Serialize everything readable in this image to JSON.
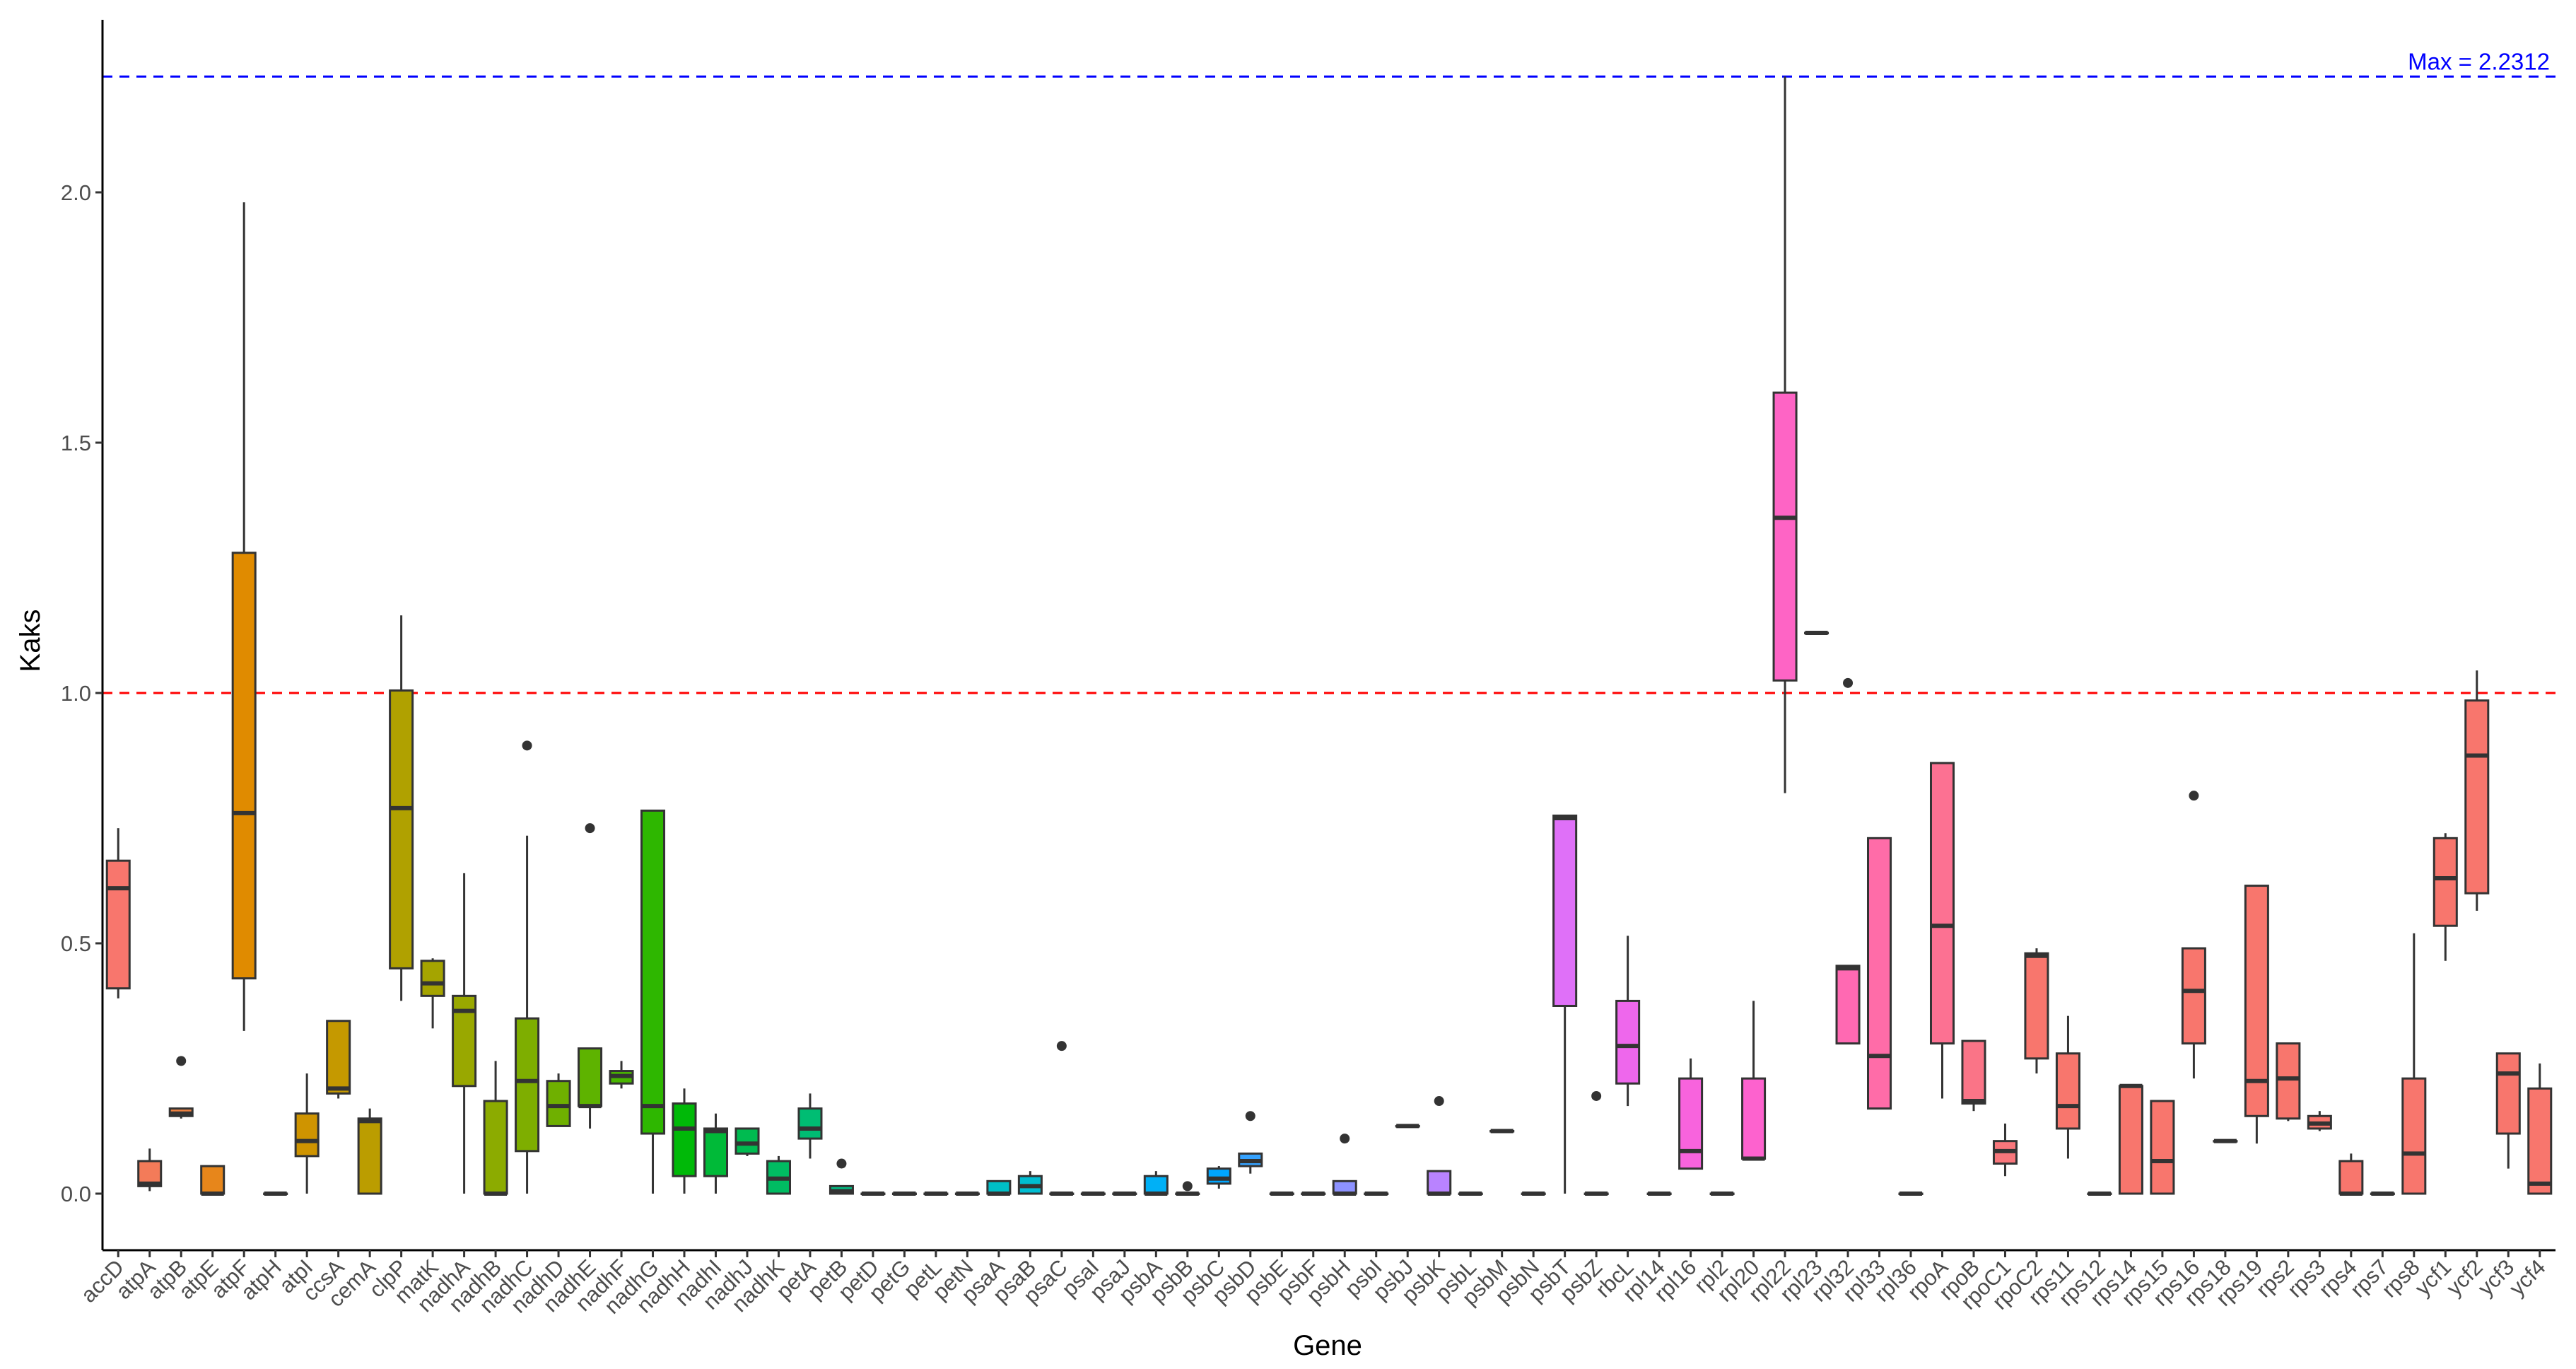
{
  "chart_data": {
    "type": "box",
    "xlabel": "Gene",
    "ylabel": "Kaks",
    "ylim": [
      -0.11,
      2.35
    ],
    "yticks": [
      0.0,
      0.5,
      1.0,
      1.5,
      2.0
    ],
    "ytick_labels": [
      "0.0",
      "0.5",
      "1.0",
      "1.5",
      "2.0"
    ],
    "grid": false,
    "legend": "none",
    "reference_lines": [
      {
        "value": 2.2312,
        "color": "#0000ff",
        "style": "dashed",
        "label": "Max = 2.2312"
      },
      {
        "value": 1.0,
        "color": "#ff0000",
        "style": "dashed",
        "label": ""
      }
    ],
    "boxes": [
      {
        "gene": "accD",
        "color": "#F8766D",
        "min": 0.39,
        "q1": 0.41,
        "median": 0.61,
        "q3": 0.665,
        "max": 0.73,
        "outliers": []
      },
      {
        "gene": "atpA",
        "color": "#F37B59",
        "min": 0.005,
        "q1": 0.015,
        "median": 0.02,
        "q3": 0.065,
        "max": 0.09,
        "outliers": []
      },
      {
        "gene": "atpB",
        "color": "#ED8141",
        "min": 0.15,
        "q1": 0.155,
        "median": 0.16,
        "q3": 0.17,
        "max": 0.17,
        "outliers": [
          0.265
        ]
      },
      {
        "gene": "atpE",
        "color": "#E7861B",
        "min": 0.0,
        "q1": 0.0,
        "median": 0.0,
        "q3": 0.055,
        "max": 0.055,
        "outliers": []
      },
      {
        "gene": "atpF",
        "color": "#E08B00",
        "min": 0.325,
        "q1": 0.43,
        "median": 0.76,
        "q3": 1.28,
        "max": 1.98,
        "outliers": []
      },
      {
        "gene": "atpH",
        "color": "#D89000",
        "min": 0.0,
        "q1": 0.0,
        "median": 0.0,
        "q3": 0.0,
        "max": 0.0,
        "outliers": []
      },
      {
        "gene": "atpI",
        "color": "#CF9400",
        "min": 0.0,
        "q1": 0.075,
        "median": 0.105,
        "q3": 0.16,
        "max": 0.24,
        "outliers": []
      },
      {
        "gene": "ccsA",
        "color": "#C59900",
        "min": 0.19,
        "q1": 0.2,
        "median": 0.21,
        "q3": 0.345,
        "max": 0.345,
        "outliers": []
      },
      {
        "gene": "cemA",
        "color": "#BB9D00",
        "min": 0.0,
        "q1": 0.0,
        "median": 0.145,
        "q3": 0.15,
        "max": 0.17,
        "outliers": []
      },
      {
        "gene": "clpP",
        "color": "#B0A100",
        "min": 0.385,
        "q1": 0.45,
        "median": 0.77,
        "q3": 1.005,
        "max": 1.155,
        "outliers": []
      },
      {
        "gene": "matK",
        "color": "#A5A400",
        "min": 0.33,
        "q1": 0.395,
        "median": 0.42,
        "q3": 0.465,
        "max": 0.47,
        "outliers": []
      },
      {
        "gene": "nadhA",
        "color": "#99A800",
        "min": 0.0,
        "q1": 0.215,
        "median": 0.365,
        "q3": 0.395,
        "max": 0.64,
        "outliers": []
      },
      {
        "gene": "nadhB",
        "color": "#8CAB00",
        "min": 0.0,
        "q1": 0.0,
        "median": 0.0,
        "q3": 0.185,
        "max": 0.265,
        "outliers": []
      },
      {
        "gene": "nadhC",
        "color": "#7EAE00",
        "min": 0.0,
        "q1": 0.085,
        "median": 0.225,
        "q3": 0.35,
        "max": 0.715,
        "outliers": [
          0.895
        ]
      },
      {
        "gene": "nadhD",
        "color": "#6FB000",
        "min": 0.135,
        "q1": 0.135,
        "median": 0.175,
        "q3": 0.225,
        "max": 0.24,
        "outliers": []
      },
      {
        "gene": "nadhE",
        "color": "#5EB300",
        "min": 0.13,
        "q1": 0.175,
        "median": 0.175,
        "q3": 0.29,
        "max": 0.29,
        "outliers": [
          0.73
        ]
      },
      {
        "gene": "nadhF",
        "color": "#49B500",
        "min": 0.21,
        "q1": 0.22,
        "median": 0.235,
        "q3": 0.245,
        "max": 0.265,
        "outliers": []
      },
      {
        "gene": "nadhG",
        "color": "#2EB700",
        "min": 0.0,
        "q1": 0.12,
        "median": 0.175,
        "q3": 0.765,
        "max": 0.765,
        "outliers": []
      },
      {
        "gene": "nadhH",
        "color": "#00B908",
        "min": 0.0,
        "q1": 0.035,
        "median": 0.13,
        "q3": 0.18,
        "max": 0.21,
        "outliers": []
      },
      {
        "gene": "nadhI",
        "color": "#00BA38",
        "min": 0.0,
        "q1": 0.035,
        "median": 0.125,
        "q3": 0.13,
        "max": 0.16,
        "outliers": []
      },
      {
        "gene": "nadhJ",
        "color": "#00BB50",
        "min": 0.075,
        "q1": 0.08,
        "median": 0.1,
        "q3": 0.13,
        "max": 0.13,
        "outliers": []
      },
      {
        "gene": "nadhK",
        "color": "#00BC62",
        "min": 0.0,
        "q1": 0.0,
        "median": 0.03,
        "q3": 0.065,
        "max": 0.075,
        "outliers": []
      },
      {
        "gene": "petA",
        "color": "#00BD73",
        "min": 0.07,
        "q1": 0.11,
        "median": 0.13,
        "q3": 0.17,
        "max": 0.2,
        "outliers": []
      },
      {
        "gene": "petB",
        "color": "#00BE83",
        "min": 0.0,
        "q1": 0.0,
        "median": 0.005,
        "q3": 0.015,
        "max": 0.015,
        "outliers": [
          0.06
        ]
      },
      {
        "gene": "petD",
        "color": "#00BF92",
        "min": 0.0,
        "q1": 0.0,
        "median": 0.0,
        "q3": 0.0,
        "max": 0.0,
        "outliers": []
      },
      {
        "gene": "petG",
        "color": "#00C0A0",
        "min": 0.0,
        "q1": 0.0,
        "median": 0.0,
        "q3": 0.0,
        "max": 0.0,
        "outliers": []
      },
      {
        "gene": "petL",
        "color": "#00C0AE",
        "min": 0.0,
        "q1": 0.0,
        "median": 0.0,
        "q3": 0.0,
        "max": 0.0,
        "outliers": []
      },
      {
        "gene": "petN",
        "color": "#00C0BB",
        "min": 0.0,
        "q1": 0.0,
        "median": 0.0,
        "q3": 0.0,
        "max": 0.0,
        "outliers": []
      },
      {
        "gene": "psaA",
        "color": "#00BFC7",
        "min": 0.0,
        "q1": 0.0,
        "median": 0.0,
        "q3": 0.025,
        "max": 0.025,
        "outliers": []
      },
      {
        "gene": "psaB",
        "color": "#00BDD2",
        "min": 0.0,
        "q1": 0.0,
        "median": 0.015,
        "q3": 0.035,
        "max": 0.045,
        "outliers": []
      },
      {
        "gene": "psaC",
        "color": "#00BBDC",
        "min": 0.0,
        "q1": 0.0,
        "median": 0.0,
        "q3": 0.0,
        "max": 0.0,
        "outliers": [
          0.295
        ]
      },
      {
        "gene": "psaI",
        "color": "#00B8E5",
        "min": 0.0,
        "q1": 0.0,
        "median": 0.0,
        "q3": 0.0,
        "max": 0.0,
        "outliers": []
      },
      {
        "gene": "psaJ",
        "color": "#00B4EF",
        "min": 0.0,
        "q1": 0.0,
        "median": 0.0,
        "q3": 0.0,
        "max": 0.0,
        "outliers": []
      },
      {
        "gene": "psbA",
        "color": "#00B0F6",
        "min": 0.0,
        "q1": 0.0,
        "median": 0.0,
        "q3": 0.035,
        "max": 0.045,
        "outliers": []
      },
      {
        "gene": "psbB",
        "color": "#00ABFD",
        "min": 0.0,
        "q1": 0.0,
        "median": 0.0,
        "q3": 0.0,
        "max": 0.0,
        "outliers": [
          0.015
        ]
      },
      {
        "gene": "psbC",
        "color": "#00A6FF",
        "min": 0.01,
        "q1": 0.02,
        "median": 0.03,
        "q3": 0.05,
        "max": 0.055,
        "outliers": []
      },
      {
        "gene": "psbD",
        "color": "#35A2FF",
        "min": 0.04,
        "q1": 0.055,
        "median": 0.065,
        "q3": 0.08,
        "max": 0.08,
        "outliers": [
          0.155
        ]
      },
      {
        "gene": "psbE",
        "color": "#619CFF",
        "min": 0.0,
        "q1": 0.0,
        "median": 0.0,
        "q3": 0.0,
        "max": 0.0,
        "outliers": []
      },
      {
        "gene": "psbF",
        "color": "#7A97FF",
        "min": 0.0,
        "q1": 0.0,
        "median": 0.0,
        "q3": 0.0,
        "max": 0.0,
        "outliers": []
      },
      {
        "gene": "psbH",
        "color": "#8D92FF",
        "min": 0.0,
        "q1": 0.0,
        "median": 0.0,
        "q3": 0.025,
        "max": 0.025,
        "outliers": [
          0.11
        ]
      },
      {
        "gene": "psbI",
        "color": "#9D8DFF",
        "min": 0.0,
        "q1": 0.0,
        "median": 0.0,
        "q3": 0.0,
        "max": 0.0,
        "outliers": []
      },
      {
        "gene": "psbJ",
        "color": "#AC88FF",
        "min": 0.135,
        "q1": 0.135,
        "median": 0.135,
        "q3": 0.135,
        "max": 0.135,
        "outliers": []
      },
      {
        "gene": "psbK",
        "color": "#B983FF",
        "min": 0.0,
        "q1": 0.0,
        "median": 0.0,
        "q3": 0.045,
        "max": 0.045,
        "outliers": [
          0.185
        ]
      },
      {
        "gene": "psbL",
        "color": "#C37EFF",
        "min": 0.0,
        "q1": 0.0,
        "median": 0.0,
        "q3": 0.0,
        "max": 0.0,
        "outliers": []
      },
      {
        "gene": "psbM",
        "color": "#CD79FF",
        "min": 0.125,
        "q1": 0.125,
        "median": 0.125,
        "q3": 0.125,
        "max": 0.125,
        "outliers": []
      },
      {
        "gene": "psbN",
        "color": "#D674FE",
        "min": 0.0,
        "q1": 0.0,
        "median": 0.0,
        "q3": 0.0,
        "max": 0.0,
        "outliers": []
      },
      {
        "gene": "psbT",
        "color": "#DF70F8",
        "min": 0.0,
        "q1": 0.375,
        "median": 0.75,
        "q3": 0.755,
        "max": 0.755,
        "outliers": []
      },
      {
        "gene": "psbZ",
        "color": "#E76BF3",
        "min": 0.0,
        "q1": 0.0,
        "median": 0.0,
        "q3": 0.0,
        "max": 0.0,
        "outliers": [
          0.195
        ]
      },
      {
        "gene": "rbcL",
        "color": "#EE67EC",
        "min": 0.175,
        "q1": 0.22,
        "median": 0.295,
        "q3": 0.385,
        "max": 0.515,
        "outliers": []
      },
      {
        "gene": "rpl14",
        "color": "#F365E5",
        "min": 0.0,
        "q1": 0.0,
        "median": 0.0,
        "q3": 0.0,
        "max": 0.0,
        "outliers": []
      },
      {
        "gene": "rpl16",
        "color": "#F863DD",
        "min": 0.05,
        "q1": 0.05,
        "median": 0.085,
        "q3": 0.23,
        "max": 0.27,
        "outliers": []
      },
      {
        "gene": "rpl2",
        "color": "#FB61D7",
        "min": 0.0,
        "q1": 0.0,
        "median": 0.0,
        "q3": 0.0,
        "max": 0.0,
        "outliers": []
      },
      {
        "gene": "rpl20",
        "color": "#FD62CE",
        "min": 0.07,
        "q1": 0.07,
        "median": 0.07,
        "q3": 0.23,
        "max": 0.385,
        "outliers": []
      },
      {
        "gene": "rpl22",
        "color": "#FE64C5",
        "min": 0.8,
        "q1": 1.025,
        "median": 1.35,
        "q3": 1.6,
        "max": 2.2312,
        "outliers": []
      },
      {
        "gene": "rpl23",
        "color": "#FF66BC",
        "min": 1.12,
        "q1": 1.12,
        "median": 1.12,
        "q3": 1.12,
        "max": 1.12,
        "outliers": []
      },
      {
        "gene": "rpl32",
        "color": "#FF69B2",
        "min": 0.3,
        "q1": 0.3,
        "median": 0.45,
        "q3": 0.455,
        "max": 0.455,
        "outliers": [
          1.02
        ]
      },
      {
        "gene": "rpl33",
        "color": "#FF6CA8",
        "min": 0.17,
        "q1": 0.17,
        "median": 0.275,
        "q3": 0.71,
        "max": 0.71,
        "outliers": []
      },
      {
        "gene": "rpl36",
        "color": "#FE6E9D",
        "min": 0.0,
        "q1": 0.0,
        "median": 0.0,
        "q3": 0.0,
        "max": 0.0,
        "outliers": []
      },
      {
        "gene": "rpoA",
        "color": "#FC7192",
        "min": 0.19,
        "q1": 0.3,
        "median": 0.535,
        "q3": 0.86,
        "max": 0.86,
        "outliers": []
      },
      {
        "gene": "rpoB",
        "color": "#FA7487",
        "min": 0.165,
        "q1": 0.18,
        "median": 0.185,
        "q3": 0.305,
        "max": 0.305,
        "outliers": []
      },
      {
        "gene": "rpoC1",
        "color": "#F8767B",
        "min": 0.035,
        "q1": 0.06,
        "median": 0.085,
        "q3": 0.105,
        "max": 0.14,
        "outliers": []
      },
      {
        "gene": "rpoC2",
        "color": "#F8766D",
        "min": 0.24,
        "q1": 0.27,
        "median": 0.475,
        "q3": 0.48,
        "max": 0.49,
        "outliers": []
      },
      {
        "gene": "rps11",
        "color": "#F8766D",
        "min": 0.07,
        "q1": 0.13,
        "median": 0.175,
        "q3": 0.28,
        "max": 0.355,
        "outliers": []
      },
      {
        "gene": "rps12",
        "color": "#F8766D",
        "min": 0.0,
        "q1": 0.0,
        "median": 0.0,
        "q3": 0.0,
        "max": 0.0,
        "outliers": []
      },
      {
        "gene": "rps14",
        "color": "#F8766D",
        "min": 0.0,
        "q1": 0.0,
        "median": 0.215,
        "q3": 0.215,
        "max": 0.215,
        "outliers": []
      },
      {
        "gene": "rps15",
        "color": "#F8766D",
        "min": 0.0,
        "q1": 0.0,
        "median": 0.065,
        "q3": 0.185,
        "max": 0.185,
        "outliers": []
      },
      {
        "gene": "rps16",
        "color": "#F8766D",
        "min": 0.23,
        "q1": 0.3,
        "median": 0.405,
        "q3": 0.49,
        "max": 0.49,
        "outliers": [
          0.795
        ]
      },
      {
        "gene": "rps18",
        "color": "#F8766D",
        "min": 0.105,
        "q1": 0.105,
        "median": 0.105,
        "q3": 0.105,
        "max": 0.105,
        "outliers": []
      },
      {
        "gene": "rps19",
        "color": "#F8766D",
        "min": 0.1,
        "q1": 0.155,
        "median": 0.225,
        "q3": 0.615,
        "max": 0.615,
        "outliers": []
      },
      {
        "gene": "rps2",
        "color": "#F8766D",
        "min": 0.145,
        "q1": 0.15,
        "median": 0.23,
        "q3": 0.3,
        "max": 0.3,
        "outliers": []
      },
      {
        "gene": "rps3",
        "color": "#F8766D",
        "min": 0.125,
        "q1": 0.13,
        "median": 0.14,
        "q3": 0.155,
        "max": 0.165,
        "outliers": []
      },
      {
        "gene": "rps4",
        "color": "#F8766D",
        "min": 0.0,
        "q1": 0.0,
        "median": 0.0,
        "q3": 0.065,
        "max": 0.08,
        "outliers": []
      },
      {
        "gene": "rps7",
        "color": "#F8766D",
        "min": 0.0,
        "q1": 0.0,
        "median": 0.0,
        "q3": 0.0,
        "max": 0.0,
        "outliers": []
      },
      {
        "gene": "rps8",
        "color": "#F8766D",
        "min": 0.0,
        "q1": 0.0,
        "median": 0.08,
        "q3": 0.23,
        "max": 0.52,
        "outliers": []
      },
      {
        "gene": "ycf1",
        "color": "#F8766D",
        "min": 0.465,
        "q1": 0.535,
        "median": 0.63,
        "q3": 0.71,
        "max": 0.72,
        "outliers": []
      },
      {
        "gene": "ycf2",
        "color": "#F8766D",
        "min": 0.565,
        "q1": 0.6,
        "median": 0.875,
        "q3": 0.985,
        "max": 1.045,
        "outliers": []
      },
      {
        "gene": "ycf3",
        "color": "#F8766D",
        "min": 0.05,
        "q1": 0.12,
        "median": 0.24,
        "q3": 0.28,
        "max": 0.28,
        "outliers": []
      },
      {
        "gene": "ycf4",
        "color": "#F8766D",
        "min": 0.0,
        "q1": 0.0,
        "median": 0.02,
        "q3": 0.21,
        "max": 0.26,
        "outliers": []
      }
    ]
  }
}
